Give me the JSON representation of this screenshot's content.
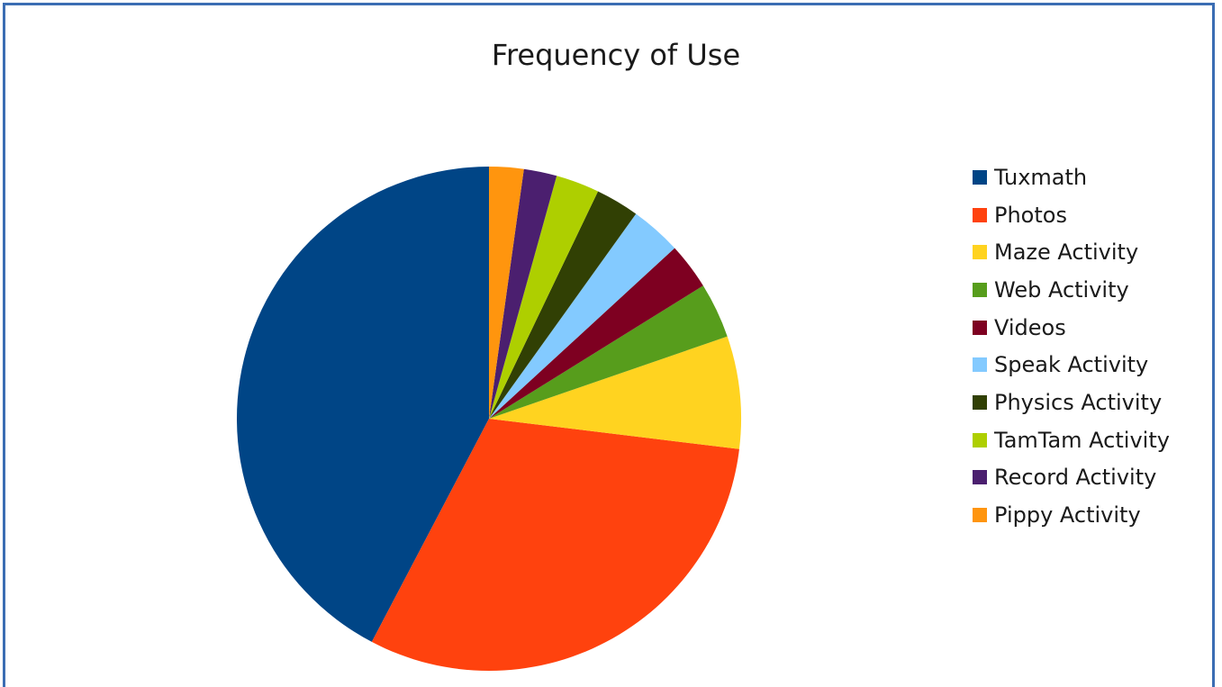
{
  "chart_data": {
    "type": "pie",
    "title": "Frequency of Use",
    "legend_position": "right",
    "start": "top, clockwise",
    "categories": [
      "Tuxmath",
      "Photos",
      "Maze Activity",
      "Web Activity",
      "Videos",
      "Speak Activity",
      "Physics Activity",
      "TamTam Activity",
      "Record Activity",
      "Pippy Activity"
    ],
    "values": [
      44.0,
      32.0,
      7.5,
      3.7,
      3.1,
      3.4,
      2.9,
      2.9,
      2.2,
      2.3
    ],
    "colors": [
      "#004586",
      "#ff420e",
      "#ffd320",
      "#579d1c",
      "#7e0021",
      "#83caff",
      "#314004",
      "#aecf00",
      "#4b1f6f",
      "#ff950e"
    ]
  }
}
